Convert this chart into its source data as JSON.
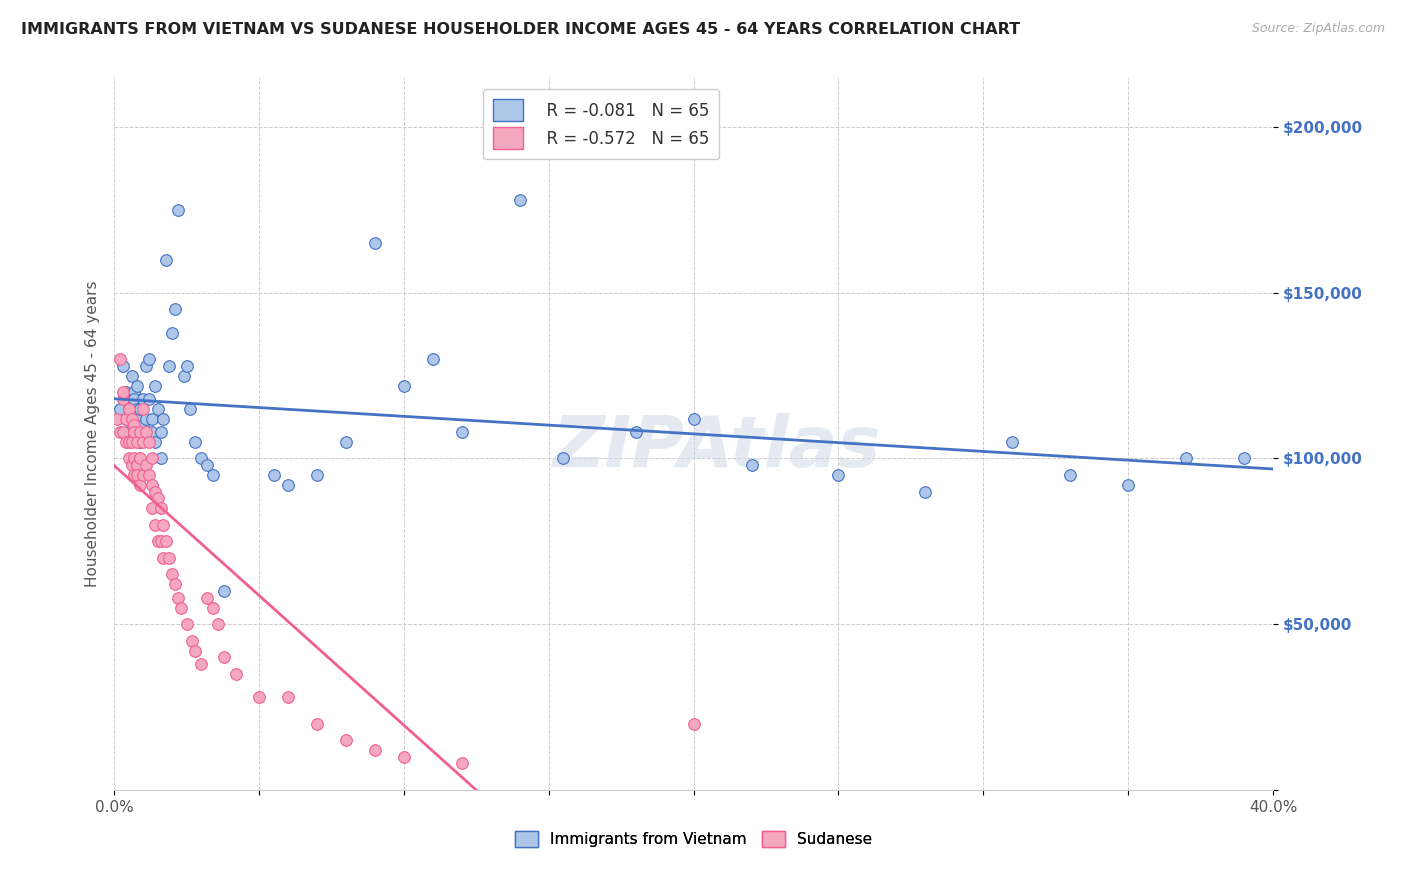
{
  "title": "IMMIGRANTS FROM VIETNAM VS SUDANESE HOUSEHOLDER INCOME AGES 45 - 64 YEARS CORRELATION CHART",
  "source": "Source: ZipAtlas.com",
  "ylabel": "Householder Income Ages 45 - 64 years",
  "xlim": [
    0.0,
    0.4
  ],
  "ylim": [
    0,
    215000
  ],
  "ytick_positions": [
    0,
    50000,
    100000,
    150000,
    200000
  ],
  "ytick_labels": [
    "",
    "$50,000",
    "$100,000",
    "$150,000",
    "$200,000"
  ],
  "legend_r_vietnam": "R = -0.081",
  "legend_n_vietnam": "N = 65",
  "legend_r_sudanese": "R = -0.572",
  "legend_n_sudanese": "N = 65",
  "color_vietnam": "#aec6e8",
  "color_sudanese": "#f4a8c0",
  "color_line_vietnam": "#4472c4",
  "color_line_sudanese": "#f06090",
  "watermark": "ZIPAtlas",
  "vietnam_x": [
    0.002,
    0.003,
    0.004,
    0.004,
    0.005,
    0.005,
    0.005,
    0.006,
    0.006,
    0.007,
    0.007,
    0.007,
    0.008,
    0.008,
    0.008,
    0.009,
    0.009,
    0.009,
    0.01,
    0.01,
    0.011,
    0.011,
    0.012,
    0.012,
    0.013,
    0.013,
    0.014,
    0.014,
    0.015,
    0.016,
    0.016,
    0.017,
    0.018,
    0.019,
    0.02,
    0.021,
    0.022,
    0.024,
    0.025,
    0.026,
    0.028,
    0.03,
    0.032,
    0.034,
    0.038,
    0.055,
    0.06,
    0.07,
    0.08,
    0.09,
    0.1,
    0.11,
    0.12,
    0.14,
    0.155,
    0.18,
    0.2,
    0.22,
    0.25,
    0.28,
    0.31,
    0.33,
    0.35,
    0.37,
    0.39
  ],
  "vietnam_y": [
    115000,
    128000,
    112000,
    120000,
    108000,
    118000,
    115000,
    125000,
    110000,
    120000,
    112000,
    118000,
    108000,
    115000,
    122000,
    112000,
    105000,
    115000,
    110000,
    118000,
    128000,
    112000,
    130000,
    118000,
    112000,
    108000,
    122000,
    105000,
    115000,
    100000,
    108000,
    112000,
    160000,
    128000,
    138000,
    145000,
    175000,
    125000,
    128000,
    115000,
    105000,
    100000,
    98000,
    95000,
    60000,
    95000,
    92000,
    95000,
    105000,
    165000,
    122000,
    130000,
    108000,
    178000,
    100000,
    108000,
    112000,
    98000,
    95000,
    90000,
    105000,
    95000,
    92000,
    100000,
    100000
  ],
  "sudanese_x": [
    0.001,
    0.002,
    0.002,
    0.003,
    0.003,
    0.003,
    0.004,
    0.004,
    0.005,
    0.005,
    0.005,
    0.006,
    0.006,
    0.006,
    0.007,
    0.007,
    0.007,
    0.007,
    0.008,
    0.008,
    0.008,
    0.009,
    0.009,
    0.009,
    0.01,
    0.01,
    0.01,
    0.011,
    0.011,
    0.012,
    0.012,
    0.013,
    0.013,
    0.013,
    0.014,
    0.014,
    0.015,
    0.015,
    0.016,
    0.016,
    0.017,
    0.017,
    0.018,
    0.019,
    0.02,
    0.021,
    0.022,
    0.023,
    0.025,
    0.027,
    0.028,
    0.03,
    0.032,
    0.034,
    0.036,
    0.038,
    0.042,
    0.05,
    0.06,
    0.07,
    0.08,
    0.09,
    0.1,
    0.12,
    0.2
  ],
  "sudanese_y": [
    112000,
    130000,
    108000,
    118000,
    108000,
    120000,
    112000,
    105000,
    115000,
    105000,
    100000,
    112000,
    105000,
    98000,
    110000,
    108000,
    100000,
    95000,
    105000,
    98000,
    95000,
    108000,
    100000,
    92000,
    115000,
    105000,
    95000,
    108000,
    98000,
    105000,
    95000,
    100000,
    92000,
    85000,
    90000,
    80000,
    88000,
    75000,
    85000,
    75000,
    80000,
    70000,
    75000,
    70000,
    65000,
    62000,
    58000,
    55000,
    50000,
    45000,
    42000,
    38000,
    58000,
    55000,
    50000,
    40000,
    35000,
    28000,
    28000,
    20000,
    15000,
    12000,
    10000,
    8000,
    20000
  ]
}
